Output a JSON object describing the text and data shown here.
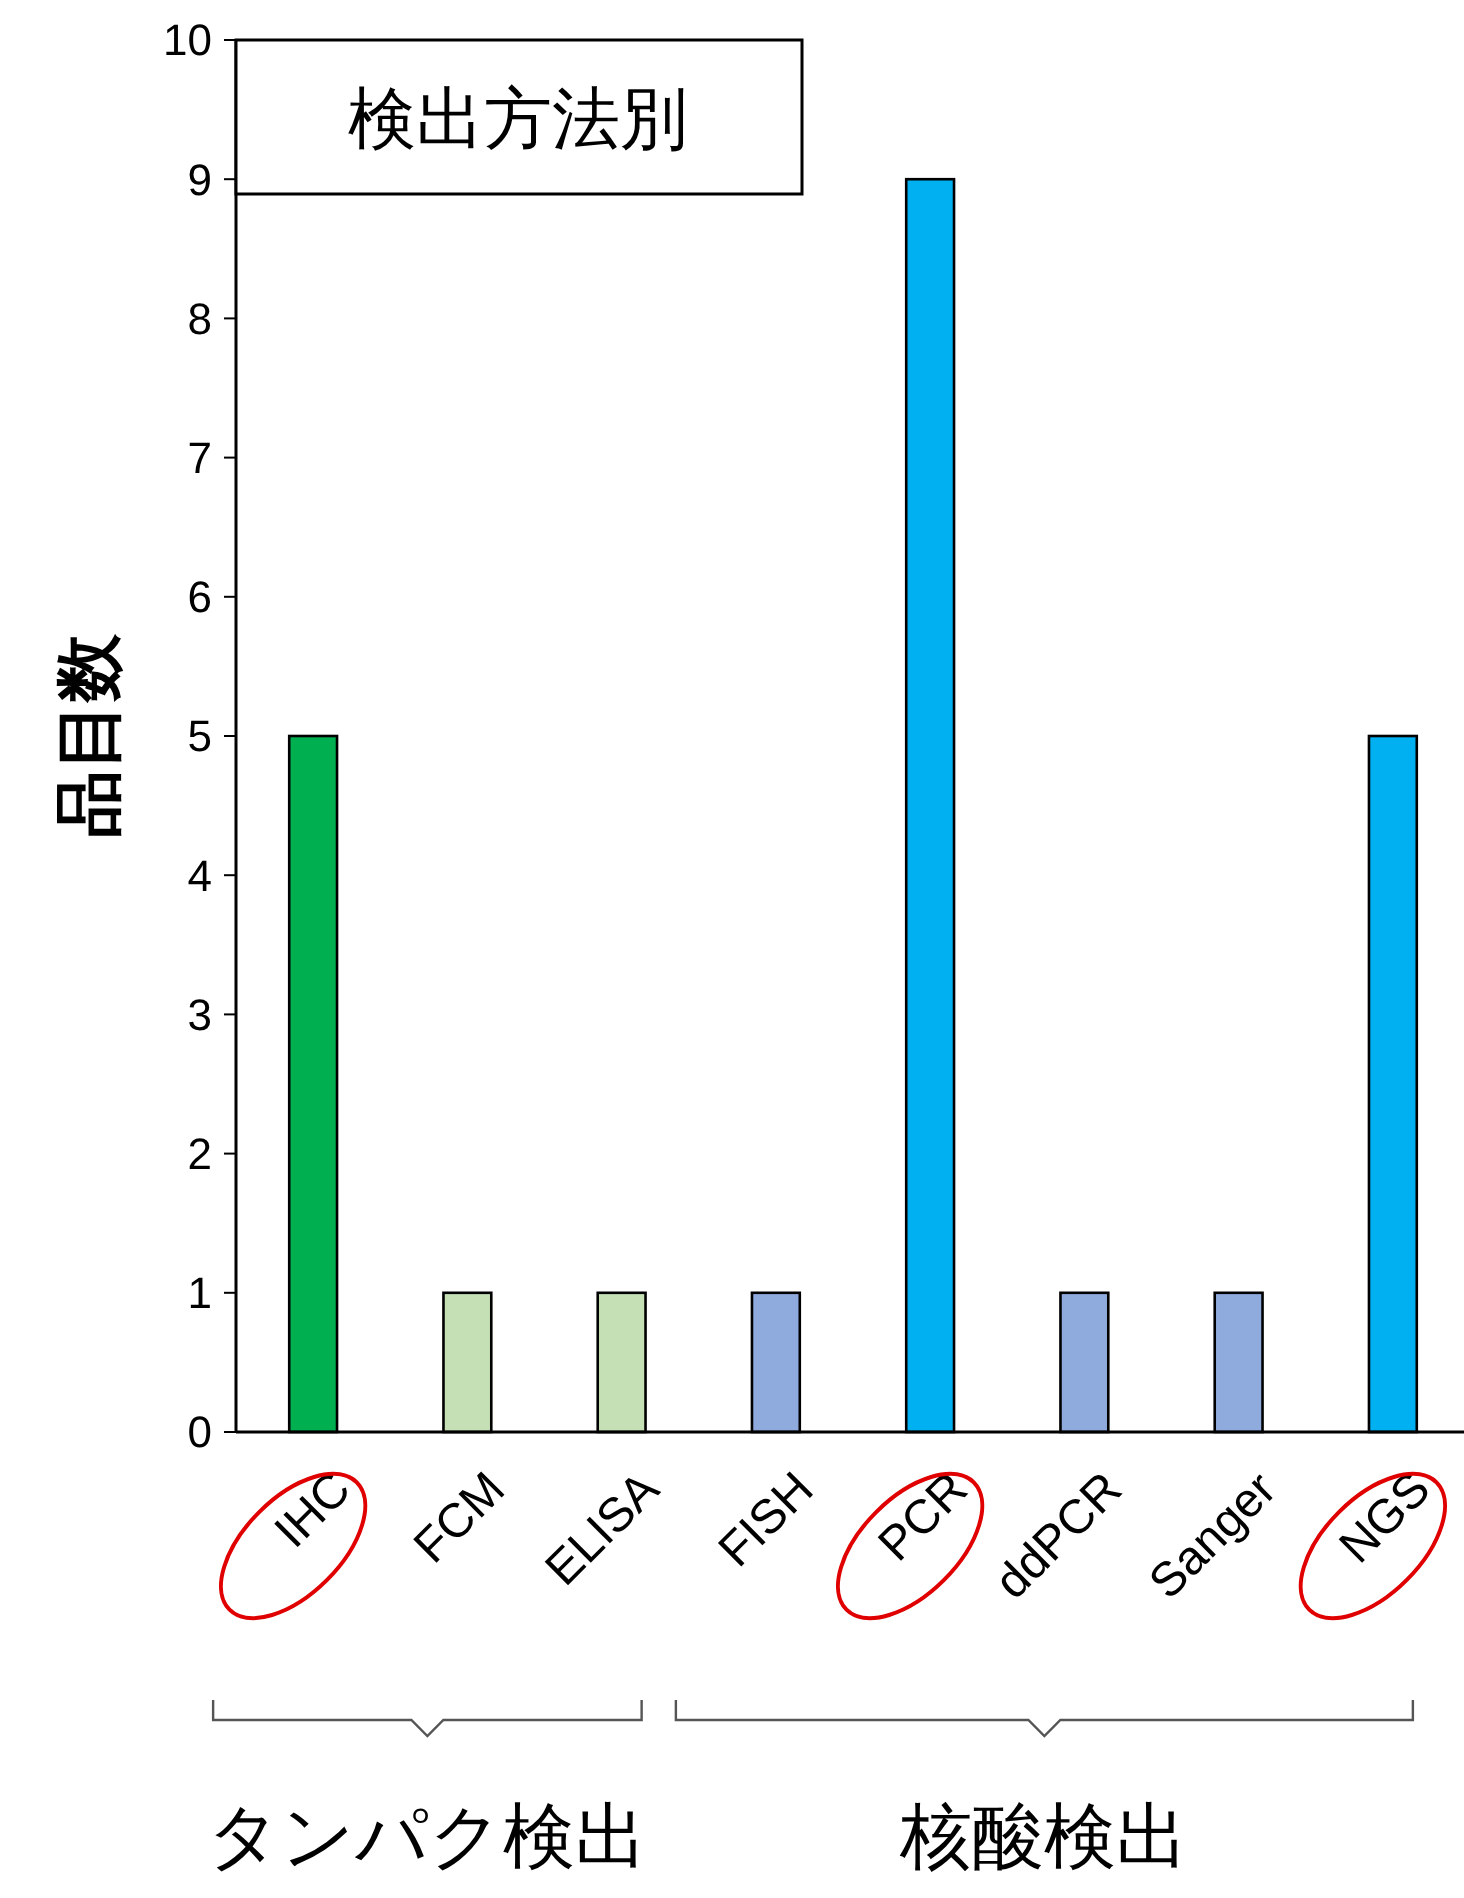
{
  "chart_data": {
    "type": "bar",
    "title": "検出方法別",
    "ylabel": "品目数",
    "categories": [
      "IHC",
      "FCM",
      "ELISA",
      "FISH",
      "PCR",
      "ddPCR",
      "Sanger",
      "NGS"
    ],
    "values": [
      5,
      1,
      1,
      1,
      9,
      1,
      1,
      5
    ],
    "colors": [
      "#00b050",
      "#c5e0b4",
      "#c5e0b4",
      "#8faadc",
      "#00b0f0",
      "#8faadc",
      "#8faadc",
      "#00b0f0"
    ],
    "ylim": [
      0,
      10
    ],
    "yticks": [
      0,
      1,
      2,
      3,
      4,
      5,
      6,
      7,
      8,
      9,
      10
    ],
    "grid": false,
    "annotations": [
      "タンパク検出",
      "核酸検出"
    ]
  }
}
